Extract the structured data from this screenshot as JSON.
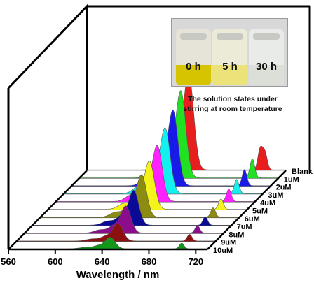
{
  "chart_data": {
    "type": "area",
    "subtype": "stacked-3d-waterfall",
    "xlabel": "Wavelength / nm",
    "xlim": [
      560,
      730
    ],
    "x_ticks": [
      560,
      600,
      640,
      680,
      720
    ],
    "ylabel": "",
    "grid": false,
    "legend": "labels at right end of each series",
    "series": [
      {
        "name": "Blank",
        "color": "#e81e1e",
        "peaks": [
          [
            647,
            100
          ],
          [
            708,
            22
          ],
          [
            712,
            18
          ]
        ]
      },
      {
        "name": "1uM",
        "color": "#22e022",
        "peaks": [
          [
            647,
            90
          ],
          [
            708,
            20
          ]
        ]
      },
      {
        "name": "2uM",
        "color": "#1a1ae8",
        "peaks": [
          [
            647,
            78
          ],
          [
            708,
            17
          ]
        ]
      },
      {
        "name": "3uM",
        "color": "#12f0f0",
        "peaks": [
          [
            647,
            68
          ],
          [
            708,
            15
          ]
        ]
      },
      {
        "name": "4uM",
        "color": "#ff22ff",
        "peaks": [
          [
            647,
            58
          ],
          [
            708,
            13
          ]
        ]
      },
      {
        "name": "5uM",
        "color": "#f4f41a",
        "peaks": [
          [
            647,
            50
          ],
          [
            708,
            11
          ]
        ]
      },
      {
        "name": "6uM",
        "color": "#8c8c10",
        "peaks": [
          [
            647,
            44
          ],
          [
            708,
            10
          ]
        ]
      },
      {
        "name": "7uM",
        "color": "#0a0a96",
        "peaks": [
          [
            647,
            36
          ],
          [
            708,
            9
          ]
        ]
      },
      {
        "name": "8uM",
        "color": "#8c0c8c",
        "peaks": [
          [
            647,
            28
          ],
          [
            708,
            8
          ]
        ]
      },
      {
        "name": "9uM",
        "color": "#8c1010",
        "peaks": [
          [
            647,
            18
          ],
          [
            708,
            7
          ]
        ]
      },
      {
        "name": "10uM",
        "color": "#13961a",
        "peaks": [
          [
            647,
            12
          ],
          [
            708,
            6
          ]
        ]
      }
    ],
    "inset": {
      "jars": [
        {
          "label": "0 h",
          "liquid_color": "#d6c400"
        },
        {
          "label": "5 h",
          "liquid_color": "#ece27a"
        },
        {
          "label": "30 h",
          "liquid_color": "#dcdfd8"
        }
      ],
      "caption_line1": "The solution states under",
      "caption_line2": "stirring at room temperature"
    }
  }
}
